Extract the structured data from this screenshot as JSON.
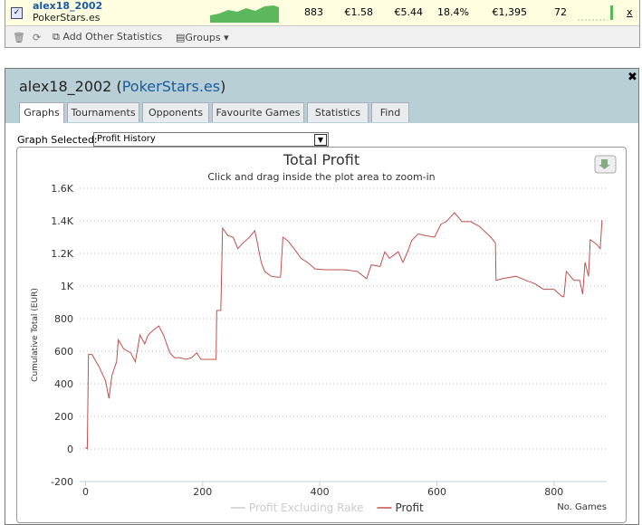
{
  "row": {
    "name": "alex18_2002",
    "site": "PokerStars.es",
    "stats": [
      "883",
      "€1.58",
      "€5.44",
      "18.4%",
      "€1,395",
      "72"
    ],
    "close": "x"
  },
  "toolbar": {
    "add": "Add Other Statistics",
    "groups": "Groups"
  },
  "panel": {
    "name": "alex18_2002",
    "open": "(",
    "site": "PokerStars.es",
    "close": ")",
    "tabs": [
      "Graphs",
      "Tournaments",
      "Opponents",
      "Favourite Games",
      "Statistics",
      "Find"
    ],
    "selector_label": "Graph Selected:",
    "selector_value": "Profit History"
  },
  "chart_data": {
    "type": "line",
    "title": "Total Profit",
    "subtitle": "Click and drag inside the plot area to zoom-in",
    "y_label": "Cumulative Total (EUR)",
    "x_label": "No. Games",
    "xlim": [
      -10,
      890
    ],
    "ylim": [
      -200,
      1600
    ],
    "xticks": [
      0,
      200,
      400,
      600,
      800
    ],
    "yticks": [
      -200,
      0,
      200,
      400,
      600,
      800,
      {
        "value": 1000,
        "label": "1K"
      },
      {
        "value": 1200,
        "label": "1.2K"
      },
      {
        "value": 1400,
        "label": "1.4K"
      },
      {
        "value": 1600,
        "label": "1.6K"
      }
    ],
    "grid": true,
    "hidden_series": [
      {
        "name": "Profit Excluding Rake",
        "color": "#cccccc"
      }
    ],
    "x": [
      0,
      3,
      5,
      11,
      23,
      34,
      40,
      45,
      53,
      56,
      65,
      77,
      85,
      93,
      101,
      107,
      116,
      125,
      133,
      144,
      152,
      161,
      172,
      181,
      190,
      197,
      207,
      223,
      224,
      231,
      234,
      243,
      252,
      260,
      269,
      280,
      289,
      294,
      300,
      306,
      317,
      327,
      333,
      337,
      345,
      356,
      368,
      379,
      392,
      410,
      441,
      464,
      480,
      488,
      503,
      511,
      519,
      534,
      542,
      550,
      557,
      568,
      580,
      596,
      607,
      616,
      630,
      643,
      658,
      673,
      692,
      700,
      701,
      712,
      735,
      752,
      767,
      782,
      800,
      814,
      817,
      821,
      834,
      844,
      849,
      853,
      859,
      862,
      873,
      879,
      882
    ],
    "series": [
      {
        "name": "Profit",
        "color": "#c0504d",
        "values": [
          10,
          0,
          580,
          580,
          505,
          420,
          310,
          450,
          535,
          670,
          615,
          590,
          535,
          700,
          645,
          700,
          730,
          755,
          700,
          590,
          560,
          560,
          550,
          560,
          590,
          550,
          550,
          550,
          850,
          850,
          1355,
          1310,
          1300,
          1230,
          1265,
          1300,
          1340,
          1255,
          1145,
          1090,
          1060,
          1055,
          1055,
          1300,
          1280,
          1230,
          1170,
          1145,
          1105,
          1100,
          1100,
          1090,
          1045,
          1130,
          1120,
          1210,
          1170,
          1210,
          1145,
          1210,
          1280,
          1320,
          1310,
          1300,
          1380,
          1395,
          1450,
          1395,
          1395,
          1365,
          1300,
          1265,
          1035,
          1045,
          1060,
          1035,
          1015,
          980,
          980,
          935,
          935,
          1090,
          1035,
          1035,
          950,
          1145,
          1060,
          1285,
          1255,
          1230,
          1405
        ]
      }
    ]
  }
}
